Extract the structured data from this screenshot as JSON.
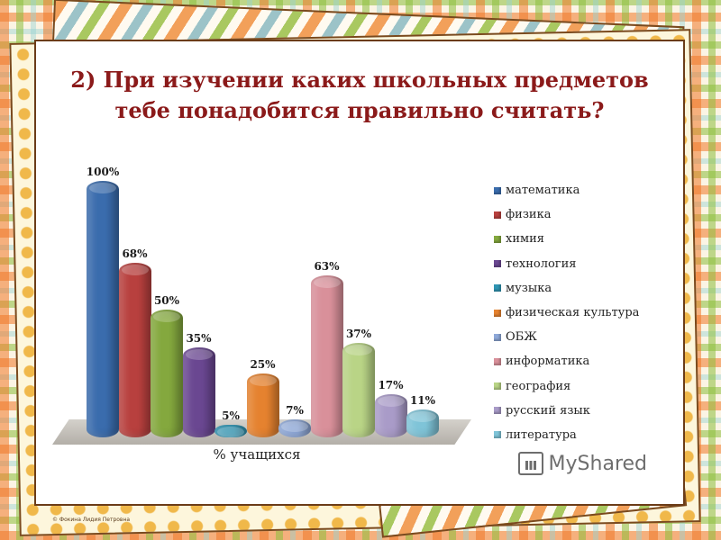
{
  "slide": {
    "title_line1": "2) При изучении каких школьных предметов",
    "title_line2": "тебе понадобится правильно считать?",
    "credit": "© Фокина Лидия Петровна",
    "watermark": "MyShared"
  },
  "chart_data": {
    "type": "bar",
    "style": "3d-cylinder",
    "title": "2) При изучении каких школьных предметов тебе понадобится правильно считать?",
    "xlabel": "% учащихся",
    "ylabel": "",
    "ylim": [
      0,
      100
    ],
    "grid": false,
    "legend_position": "right",
    "categories": [
      "% учащихся"
    ],
    "series": [
      {
        "name": "математика",
        "value": 100,
        "label": "100%",
        "color": "#3a6cad"
      },
      {
        "name": "физика",
        "value": 68,
        "label": "68%",
        "color": "#b8403e"
      },
      {
        "name": "химия",
        "value": 50,
        "label": "50%",
        "color": "#84a83e"
      },
      {
        "name": "технология",
        "value": 35,
        "label": "35%",
        "color": "#6a4791"
      },
      {
        "name": "музыка",
        "value": 5,
        "label": "5%",
        "color": "#2f95b3"
      },
      {
        "name": "физическая культура",
        "value": 25,
        "label": "25%",
        "color": "#e5822f"
      },
      {
        "name": "ОБЖ",
        "value": 7,
        "label": "7%",
        "color": "#8ea8d8"
      },
      {
        "name": "информатика",
        "value": 63,
        "label": "63%",
        "color": "#d9909a"
      },
      {
        "name": "география",
        "value": 37,
        "label": "37%",
        "color": "#b9d486"
      },
      {
        "name": "русский язык",
        "value": 17,
        "label": "17%",
        "color": "#a99bc8"
      },
      {
        "name": "литература",
        "value": 11,
        "label": "11%",
        "color": "#7fc4d8"
      }
    ]
  }
}
